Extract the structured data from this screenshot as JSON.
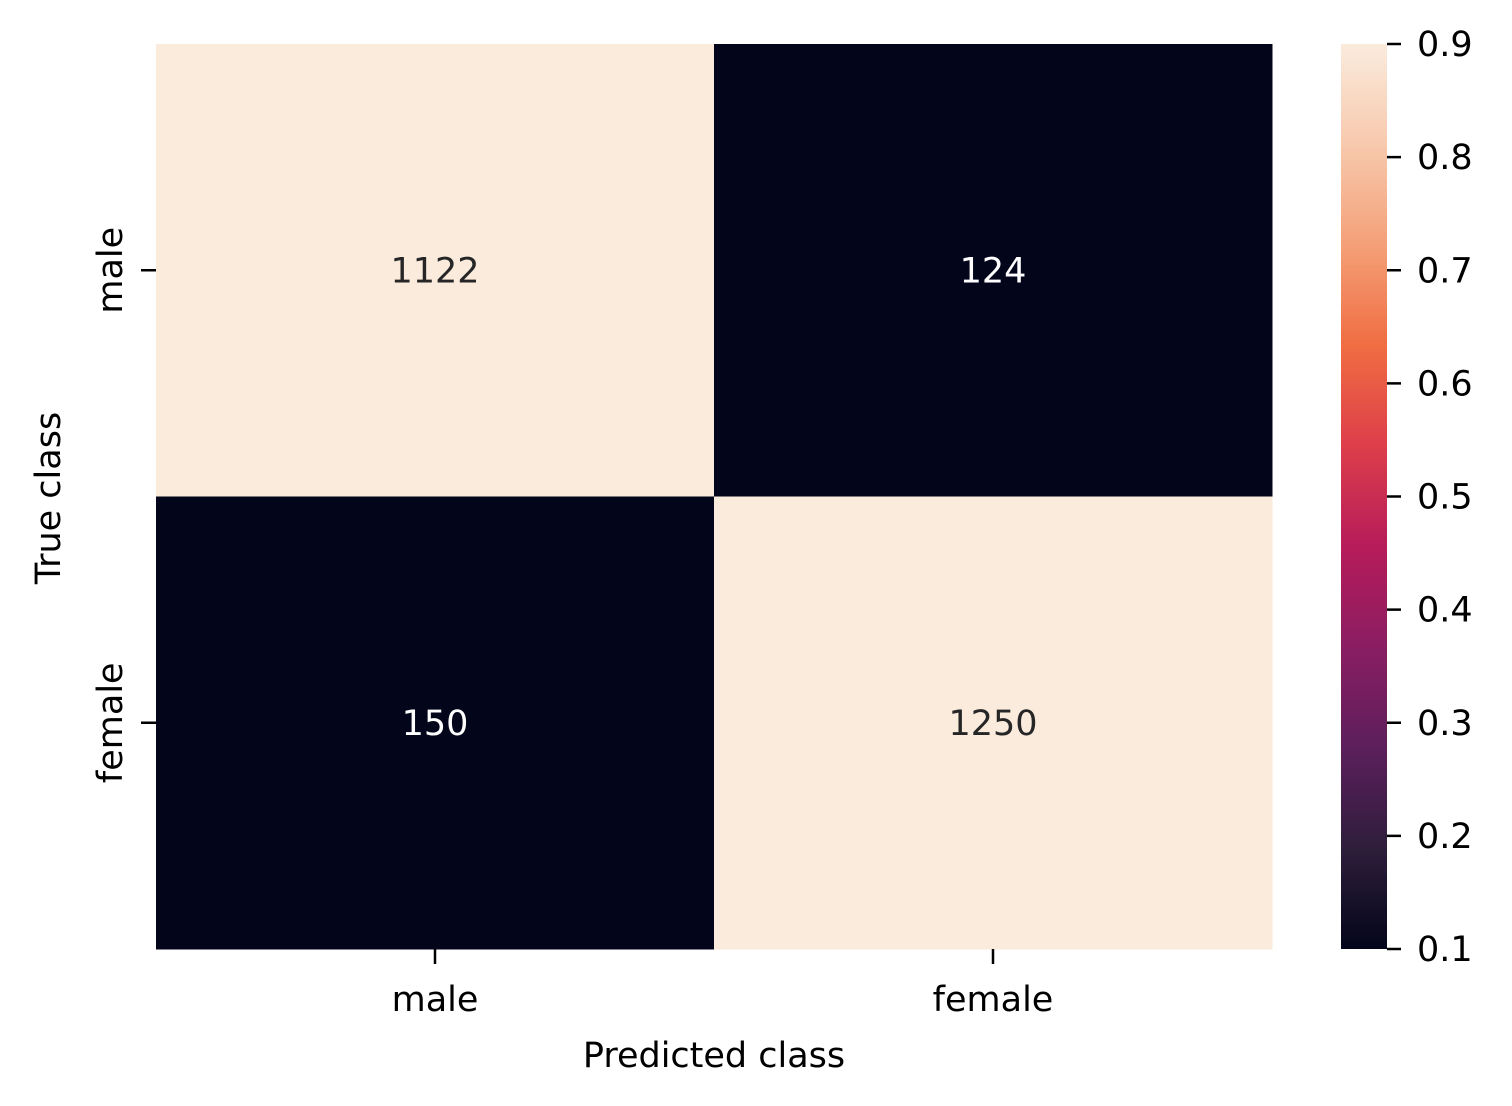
{
  "chart_data": {
    "type": "heatmap",
    "title": "",
    "xlabel": "Predicted class",
    "ylabel": "True class",
    "x_categories": [
      "male",
      "female"
    ],
    "y_categories": [
      "male",
      "female"
    ],
    "values": [
      [
        1122,
        124
      ],
      [
        150,
        1250
      ]
    ],
    "annotations": [
      [
        "1122",
        "124"
      ],
      [
        "150",
        "1250"
      ]
    ],
    "normalized_values": [
      [
        0.9,
        0.1
      ],
      [
        0.1,
        0.9
      ]
    ],
    "colorbar": {
      "vmin": 0.1,
      "vmax": 0.9,
      "ticks": [
        0.1,
        0.2,
        0.3,
        0.4,
        0.5,
        0.6,
        0.7,
        0.8,
        0.9
      ],
      "tick_labels": [
        "0.1",
        "0.2",
        "0.3",
        "0.4",
        "0.5",
        "0.6",
        "0.7",
        "0.8",
        "0.9"
      ],
      "colormap": "rocket",
      "colormap_stops": [
        "#03051a",
        "#2e1e3b",
        "#5c1f5c",
        "#8a1d62",
        "#b61c5a",
        "#dd3e4a",
        "#f06d42",
        "#f4a078",
        "#f7c9ad",
        "#faebdd"
      ]
    },
    "grid": false,
    "legend": "colorbar-right"
  }
}
